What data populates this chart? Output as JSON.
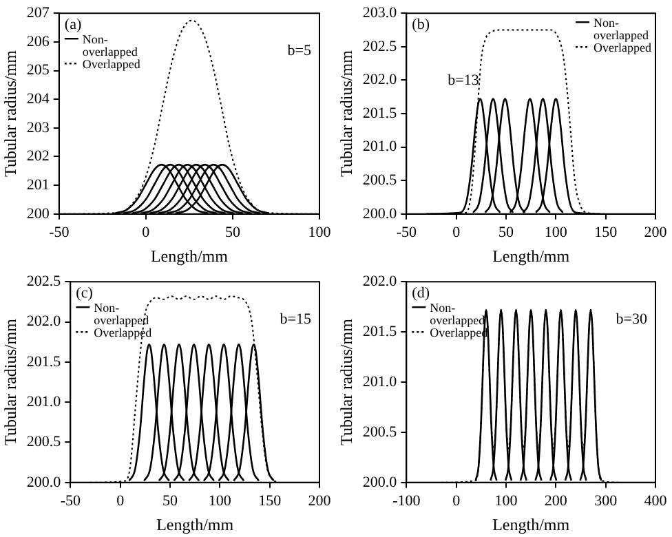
{
  "chart_data": [
    {
      "type": "line",
      "annotations": [
        "(a)",
        "b=5"
      ],
      "xlabel": "Length/mm",
      "ylabel": "Tubular radius/mm",
      "xlim": [
        -50,
        100
      ],
      "xticks": [
        -50,
        0,
        50,
        100
      ],
      "ylim": [
        200,
        207
      ],
      "yticks": [
        200,
        201,
        202,
        203,
        204,
        205,
        206,
        207
      ],
      "legend": "top left",
      "grid": false,
      "series": [
        {
          "name": "Non-overlapped",
          "color": "#000000",
          "line_style": "solid",
          "x": [
            -18,
            -11,
            -5,
            0,
            5,
            9,
            13,
            18,
            23,
            29,
            36
          ],
          "values": [
            200.02,
            200.15,
            200.51,
            201.04,
            201.56,
            201.72,
            201.56,
            201.04,
            200.51,
            200.15,
            200.02
          ]
        },
        {
          "color": "#000000",
          "line_style": "solid",
          "x": [
            -13,
            -6,
            0,
            5,
            10,
            14,
            18,
            23,
            28,
            34,
            41
          ],
          "values": [
            200.02,
            200.15,
            200.51,
            201.04,
            201.56,
            201.72,
            201.56,
            201.04,
            200.51,
            200.15,
            200.02
          ]
        },
        {
          "color": "#000000",
          "line_style": "solid",
          "x": [
            -8,
            -1,
            5,
            10,
            15,
            19,
            23,
            28,
            33,
            39,
            46
          ],
          "values": [
            200.02,
            200.15,
            200.51,
            201.04,
            201.56,
            201.72,
            201.56,
            201.04,
            200.51,
            200.15,
            200.02
          ]
        },
        {
          "color": "#000000",
          "line_style": "solid",
          "x": [
            -3,
            4,
            10,
            15,
            20,
            24,
            28,
            33,
            38,
            44,
            51
          ],
          "values": [
            200.02,
            200.15,
            200.51,
            201.04,
            201.56,
            201.72,
            201.56,
            201.04,
            200.51,
            200.15,
            200.02
          ]
        },
        {
          "color": "#000000",
          "line_style": "solid",
          "x": [
            2,
            9,
            15,
            20,
            25,
            29,
            33,
            38,
            43,
            49,
            56
          ],
          "values": [
            200.02,
            200.15,
            200.51,
            201.04,
            201.56,
            201.72,
            201.56,
            201.04,
            200.51,
            200.15,
            200.02
          ]
        },
        {
          "color": "#000000",
          "line_style": "solid",
          "x": [
            7,
            14,
            20,
            25,
            30,
            34,
            38,
            43,
            48,
            54,
            61
          ],
          "values": [
            200.02,
            200.15,
            200.51,
            201.04,
            201.56,
            201.72,
            201.56,
            201.04,
            200.51,
            200.15,
            200.02
          ]
        },
        {
          "color": "#000000",
          "line_style": "solid",
          "x": [
            12,
            19,
            25,
            30,
            35,
            39,
            43,
            48,
            53,
            59,
            66
          ],
          "values": [
            200.02,
            200.15,
            200.51,
            201.04,
            201.56,
            201.72,
            201.56,
            201.04,
            200.51,
            200.15,
            200.02
          ]
        },
        {
          "color": "#000000",
          "line_style": "solid",
          "x": [
            17,
            24,
            30,
            35,
            40,
            44,
            48,
            53,
            58,
            64,
            71
          ],
          "values": [
            200.02,
            200.15,
            200.51,
            201.04,
            201.56,
            201.72,
            201.56,
            201.04,
            200.51,
            200.15,
            200.02
          ]
        },
        {
          "name": "Overlapped",
          "color": "#000000",
          "line_style": "dotted",
          "x": [
            -50,
            -15,
            -5,
            0,
            5,
            10,
            15,
            20,
            26.5,
            33,
            38,
            43,
            48,
            53,
            58,
            68,
            100
          ],
          "values": [
            200,
            200.05,
            200.6,
            201.3,
            202.4,
            203.9,
            205.3,
            206.3,
            206.75,
            206.3,
            205.3,
            203.9,
            202.4,
            201.3,
            200.6,
            200.05,
            200
          ]
        }
      ]
    },
    {
      "type": "line",
      "annotations": [
        "(b)",
        "b=13"
      ],
      "xlabel": "Length/mm",
      "ylabel": "Tubular radius/mm",
      "xlim": [
        -50,
        200
      ],
      "xticks": [
        -50,
        0,
        50,
        100,
        150,
        200
      ],
      "ylim": [
        200,
        203
      ],
      "yticks": [
        {
          "value": 200,
          "label": "200.0"
        },
        200.5,
        {
          "value": 201,
          "label": "201.0"
        },
        201.5,
        {
          "value": 202,
          "label": "202.0"
        },
        202.5,
        {
          "value": 203,
          "label": "203.0"
        }
      ],
      "legend": "top right",
      "grid": false,
      "series": [
        {
          "name": "Non-overlapped",
          "color": "#000000",
          "line_style": "solid",
          "x": [
            -30,
            4,
            10,
            15,
            19,
            22,
            24,
            26,
            29,
            33,
            38,
            44
          ],
          "values": [
            200,
            200.02,
            200.17,
            200.66,
            201.28,
            201.64,
            201.72,
            201.64,
            201.28,
            200.66,
            200.17,
            200.02
          ]
        },
        {
          "color": "#000000",
          "line_style": "solid",
          "x": [
            17,
            23,
            28,
            32,
            35,
            37,
            39,
            42,
            46,
            51,
            57
          ],
          "values": [
            200.02,
            200.17,
            200.66,
            201.28,
            201.64,
            201.72,
            201.64,
            201.28,
            200.66,
            200.17,
            200.02
          ]
        },
        {
          "color": "#000000",
          "line_style": "solid",
          "x": [
            29,
            35,
            40,
            44,
            47,
            49,
            51,
            54,
            58,
            63,
            69
          ],
          "values": [
            200.02,
            200.17,
            200.66,
            201.28,
            201.64,
            201.72,
            201.64,
            201.28,
            200.66,
            200.17,
            200.02
          ]
        },
        {
          "color": "#000000",
          "line_style": "solid",
          "x": [
            54,
            60,
            65,
            69,
            72,
            74,
            76,
            79,
            83,
            88,
            94
          ],
          "values": [
            200.02,
            200.17,
            200.66,
            201.28,
            201.64,
            201.72,
            201.64,
            201.28,
            200.66,
            200.17,
            200.02
          ]
        },
        {
          "color": "#000000",
          "line_style": "solid",
          "x": [
            67,
            73,
            78,
            82,
            85,
            87,
            89,
            92,
            96,
            101,
            107
          ],
          "values": [
            200.02,
            200.17,
            200.66,
            201.28,
            201.64,
            201.72,
            201.64,
            201.28,
            200.66,
            200.17,
            200.02
          ]
        },
        {
          "color": "#000000",
          "line_style": "solid",
          "x": [
            80,
            86,
            91,
            95,
            98,
            100,
            102,
            105,
            109,
            114,
            120,
            145
          ],
          "values": [
            200.02,
            200.17,
            200.66,
            201.28,
            201.64,
            201.72,
            201.64,
            201.28,
            200.66,
            200.17,
            200.02,
            200
          ]
        },
        {
          "name": "Overlapped",
          "color": "#000000",
          "line_style": "dotted",
          "x": [
            -30,
            10,
            15,
            19,
            22,
            25,
            29,
            35,
            45,
            95,
            102,
            107,
            111,
            115,
            119,
            124,
            131,
            150
          ],
          "values": [
            200,
            200.02,
            200.3,
            201,
            201.7,
            202.3,
            202.6,
            202.72,
            202.75,
            202.75,
            202.65,
            202.4,
            201.9,
            201.2,
            200.5,
            200.15,
            200.02,
            200
          ]
        }
      ]
    },
    {
      "type": "line",
      "annotations": [
        "(c)",
        "b=15"
      ],
      "xlabel": "Length/mm",
      "ylabel": "Tubular radius/mm",
      "xlim": [
        -50,
        200
      ],
      "xticks": [
        -50,
        0,
        50,
        100,
        150,
        200
      ],
      "ylim": [
        200,
        202.5
      ],
      "yticks": [
        {
          "value": 200,
          "label": "200.0"
        },
        200.5,
        {
          "value": 201,
          "label": "201.0"
        },
        201.5,
        {
          "value": 202,
          "label": "202.0"
        },
        202.5
      ],
      "legend": "top left",
      "grid": false,
      "series": [
        {
          "name": "Non-overlapped",
          "color": "#000000",
          "line_style": "solid",
          "x": [
            9,
            15,
            20,
            24,
            27,
            29,
            31,
            34,
            38,
            43,
            49
          ],
          "values": [
            200.02,
            200.17,
            200.66,
            201.28,
            201.64,
            201.72,
            201.64,
            201.28,
            200.66,
            200.17,
            200.02
          ]
        },
        {
          "color": "#000000",
          "line_style": "solid",
          "x": [
            24,
            30,
            35,
            39,
            42,
            44,
            46,
            49,
            53,
            58,
            64
          ],
          "values": [
            200.02,
            200.17,
            200.66,
            201.28,
            201.64,
            201.72,
            201.64,
            201.28,
            200.66,
            200.17,
            200.02
          ]
        },
        {
          "color": "#000000",
          "line_style": "solid",
          "x": [
            39,
            45,
            50,
            54,
            57,
            59,
            61,
            64,
            68,
            73,
            79
          ],
          "values": [
            200.02,
            200.17,
            200.66,
            201.28,
            201.64,
            201.72,
            201.64,
            201.28,
            200.66,
            200.17,
            200.02
          ]
        },
        {
          "color": "#000000",
          "line_style": "solid",
          "x": [
            54,
            60,
            65,
            69,
            72,
            74,
            76,
            79,
            83,
            88,
            94
          ],
          "values": [
            200.02,
            200.17,
            200.66,
            201.28,
            201.64,
            201.72,
            201.64,
            201.28,
            200.66,
            200.17,
            200.02
          ]
        },
        {
          "color": "#000000",
          "line_style": "solid",
          "x": [
            69,
            75,
            80,
            84,
            87,
            89,
            91,
            94,
            98,
            103,
            109
          ],
          "values": [
            200.02,
            200.17,
            200.66,
            201.28,
            201.64,
            201.72,
            201.64,
            201.28,
            200.66,
            200.17,
            200.02
          ]
        },
        {
          "color": "#000000",
          "line_style": "solid",
          "x": [
            84,
            90,
            95,
            99,
            102,
            104,
            106,
            109,
            113,
            118,
            124
          ],
          "values": [
            200.02,
            200.17,
            200.66,
            201.28,
            201.64,
            201.72,
            201.64,
            201.28,
            200.66,
            200.17,
            200.02
          ]
        },
        {
          "color": "#000000",
          "line_style": "solid",
          "x": [
            99,
            105,
            110,
            114,
            117,
            119,
            121,
            124,
            128,
            133,
            139
          ],
          "values": [
            200.02,
            200.17,
            200.66,
            201.28,
            201.64,
            201.72,
            201.64,
            201.28,
            200.66,
            200.17,
            200.02
          ]
        },
        {
          "color": "#000000",
          "line_style": "solid",
          "x": [
            114,
            120,
            125,
            129,
            132,
            134,
            136,
            139,
            143,
            148,
            154
          ],
          "values": [
            200.02,
            200.17,
            200.66,
            201.28,
            201.64,
            201.72,
            201.64,
            201.28,
            200.66,
            200.17,
            200.02
          ]
        },
        {
          "name": "Overlapped",
          "color": "#000000",
          "line_style": "dotted",
          "x": [
            -30,
            5,
            10,
            15,
            20,
            25,
            30,
            36,
            44,
            51,
            59,
            66,
            74,
            81,
            89,
            96,
            104,
            111,
            119,
            126,
            132,
            137,
            142,
            147,
            152,
            158
          ],
          "values": [
            200,
            200.02,
            200.2,
            200.9,
            201.6,
            202.1,
            202.25,
            202.3,
            202.28,
            202.32,
            202.28,
            202.32,
            202.28,
            202.32,
            202.28,
            202.32,
            202.28,
            202.32,
            202.3,
            202.25,
            202,
            201.4,
            200.7,
            200.2,
            200.05,
            200
          ]
        }
      ]
    },
    {
      "type": "line",
      "annotations": [
        "(d)",
        "b=30"
      ],
      "xlabel": "Length/mm",
      "ylabel": "Tubular radius/mm",
      "xlim": [
        -100,
        400
      ],
      "xticks": [
        -100,
        0,
        100,
        200,
        300,
        400
      ],
      "ylim": [
        200,
        202
      ],
      "yticks": [
        {
          "value": 200,
          "label": "200.0"
        },
        200.5,
        {
          "value": 201,
          "label": "201.0"
        },
        201.5,
        {
          "value": 202,
          "label": "202.0"
        }
      ],
      "legend": "top left",
      "grid": false,
      "series": [
        {
          "name": "Non-overlapped",
          "color": "#000000",
          "line_style": "solid",
          "x": [
            39,
            45,
            50,
            54,
            57,
            60,
            63,
            66,
            70,
            75,
            81
          ],
          "values": [
            200.02,
            200.17,
            200.62,
            201.19,
            201.57,
            201.72,
            201.57,
            201.19,
            200.62,
            200.17,
            200.02
          ]
        },
        {
          "color": "#000000",
          "line_style": "solid",
          "x": [
            69,
            75,
            80,
            84,
            87,
            90,
            93,
            96,
            100,
            105,
            111
          ],
          "values": [
            200.02,
            200.17,
            200.62,
            201.19,
            201.57,
            201.72,
            201.57,
            201.19,
            200.62,
            200.17,
            200.02
          ]
        },
        {
          "color": "#000000",
          "line_style": "solid",
          "x": [
            99,
            105,
            110,
            114,
            117,
            120,
            123,
            126,
            130,
            135,
            141
          ],
          "values": [
            200.02,
            200.17,
            200.62,
            201.19,
            201.57,
            201.72,
            201.57,
            201.19,
            200.62,
            200.17,
            200.02
          ]
        },
        {
          "color": "#000000",
          "line_style": "solid",
          "x": [
            129,
            135,
            140,
            144,
            147,
            150,
            153,
            156,
            160,
            165,
            171
          ],
          "values": [
            200.02,
            200.17,
            200.62,
            201.19,
            201.57,
            201.72,
            201.57,
            201.19,
            200.62,
            200.17,
            200.02
          ]
        },
        {
          "color": "#000000",
          "line_style": "solid",
          "x": [
            159,
            165,
            170,
            174,
            177,
            180,
            183,
            186,
            190,
            195,
            201
          ],
          "values": [
            200.02,
            200.17,
            200.62,
            201.19,
            201.57,
            201.72,
            201.57,
            201.19,
            200.62,
            200.17,
            200.02
          ]
        },
        {
          "color": "#000000",
          "line_style": "solid",
          "x": [
            189,
            195,
            200,
            204,
            207,
            210,
            213,
            216,
            220,
            225,
            231
          ],
          "values": [
            200.02,
            200.17,
            200.62,
            201.19,
            201.57,
            201.72,
            201.57,
            201.19,
            200.62,
            200.17,
            200.02
          ]
        },
        {
          "color": "#000000",
          "line_style": "solid",
          "x": [
            219,
            225,
            230,
            234,
            237,
            240,
            243,
            246,
            250,
            255,
            261
          ],
          "values": [
            200.02,
            200.17,
            200.62,
            201.19,
            201.57,
            201.72,
            201.57,
            201.19,
            200.62,
            200.17,
            200.02
          ]
        },
        {
          "color": "#000000",
          "line_style": "solid",
          "x": [
            249,
            255,
            260,
            264,
            267,
            270,
            273,
            276,
            280,
            285,
            291
          ],
          "values": [
            200.02,
            200.17,
            200.62,
            201.19,
            201.57,
            201.72,
            201.57,
            201.19,
            200.62,
            200.17,
            200.02
          ]
        },
        {
          "name": "Overlapped",
          "color": "#000000",
          "line_style": "dotted",
          "x": [
            -30,
            39,
            45,
            50,
            54,
            57,
            60,
            63,
            66,
            70,
            75,
            80,
            84,
            87,
            90,
            93,
            96,
            100,
            105,
            110,
            114,
            117,
            120,
            123,
            126,
            130,
            135,
            140,
            144,
            147,
            150,
            153,
            156,
            160,
            165,
            170,
            174,
            177,
            180,
            183,
            186,
            190,
            195,
            200,
            204,
            207,
            210,
            213,
            216,
            220,
            225,
            230,
            234,
            237,
            240,
            243,
            246,
            250,
            255,
            260,
            264,
            267,
            270,
            273,
            276,
            280,
            285,
            291,
            330
          ],
          "values": [
            200,
            200.02,
            200.17,
            200.62,
            201.19,
            201.57,
            201.72,
            201.57,
            201.19,
            200.62,
            200.34,
            200.62,
            201.19,
            201.57,
            201.72,
            201.57,
            201.19,
            200.62,
            200.34,
            200.62,
            201.19,
            201.57,
            201.72,
            201.57,
            201.19,
            200.62,
            200.34,
            200.62,
            201.19,
            201.57,
            201.72,
            201.57,
            201.19,
            200.62,
            200.34,
            200.62,
            201.19,
            201.57,
            201.72,
            201.57,
            201.19,
            200.62,
            200.34,
            200.62,
            201.19,
            201.57,
            201.72,
            201.57,
            201.19,
            200.62,
            200.34,
            200.62,
            201.19,
            201.57,
            201.72,
            201.57,
            201.19,
            200.62,
            200.34,
            200.62,
            201.19,
            201.57,
            201.72,
            201.57,
            201.19,
            200.62,
            200.17,
            200.02,
            200
          ]
        }
      ]
    }
  ]
}
